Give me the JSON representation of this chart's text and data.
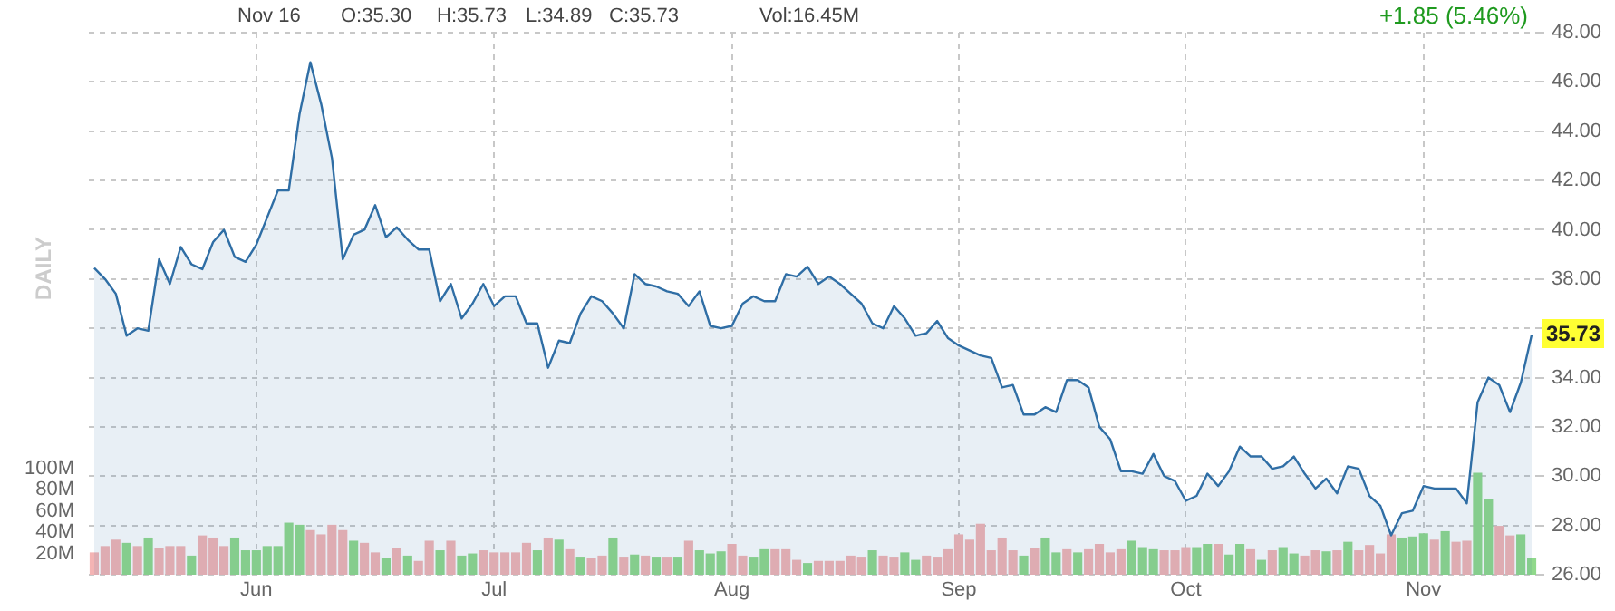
{
  "chart_data": {
    "type": "area",
    "categories": [
      null,
      null,
      null,
      null,
      null,
      null,
      null,
      null,
      null,
      null,
      null,
      null,
      null,
      null,
      null,
      "Jun",
      null,
      null,
      null,
      null,
      null,
      null,
      null,
      null,
      null,
      null,
      null,
      null,
      null,
      null,
      null,
      null,
      null,
      null,
      null,
      null,
      null,
      "Jul",
      null,
      null,
      null,
      null,
      null,
      null,
      null,
      null,
      null,
      null,
      null,
      null,
      null,
      null,
      null,
      null,
      null,
      null,
      null,
      null,
      null,
      "Aug",
      null,
      null,
      null,
      null,
      null,
      null,
      null,
      null,
      null,
      null,
      null,
      null,
      null,
      null,
      null,
      null,
      null,
      null,
      null,
      null,
      "Sep",
      null,
      null,
      null,
      null,
      null,
      null,
      null,
      null,
      null,
      null,
      null,
      null,
      null,
      null,
      null,
      null,
      null,
      null,
      null,
      null,
      "Oct",
      null,
      null,
      null,
      null,
      null,
      null,
      null,
      null,
      null,
      null,
      null,
      null,
      null,
      null,
      null,
      null,
      null,
      null,
      null,
      null,
      null,
      "Nov",
      null,
      null,
      null,
      null,
      null,
      null,
      null,
      null,
      null,
      null
    ],
    "series": [
      {
        "axis": "y2",
        "color": "#2f6ea5",
        "values": [
          38.45,
          38.0,
          37.4,
          35.7,
          36.0,
          35.9,
          38.8,
          37.8,
          39.3,
          38.6,
          38.4,
          39.5,
          40.0,
          38.9,
          38.7,
          39.4,
          40.5,
          41.6,
          41.6,
          44.7,
          46.8,
          45.1,
          42.9,
          38.8,
          39.8,
          40.0,
          41.0,
          39.7,
          40.1,
          39.6,
          39.2,
          39.2,
          37.1,
          37.8,
          36.4,
          37.0,
          37.8,
          36.9,
          37.3,
          37.3,
          36.2,
          36.2,
          34.4,
          35.5,
          35.4,
          36.6,
          37.3,
          37.1,
          36.6,
          36.0,
          38.2,
          37.8,
          37.7,
          37.5,
          37.4,
          36.9,
          37.5,
          36.1,
          36.0,
          36.1,
          37.0,
          37.3,
          37.1,
          37.1,
          38.2,
          38.1,
          38.5,
          37.8,
          38.1,
          37.8,
          37.4,
          37.0,
          36.2,
          36.0,
          36.9,
          36.4,
          35.7,
          35.8,
          36.3,
          35.6,
          35.3,
          35.1,
          34.9,
          34.8,
          33.6,
          33.7,
          32.5,
          32.5,
          32.8,
          32.6,
          33.9,
          33.9,
          33.6,
          32.0,
          31.5,
          30.2,
          30.2,
          30.1,
          30.9,
          30.0,
          29.8,
          29.0,
          29.2,
          30.1,
          29.6,
          30.2,
          31.2,
          30.8,
          30.8,
          30.3,
          30.4,
          30.8,
          30.1,
          29.5,
          29.9,
          29.3,
          30.4,
          30.3,
          29.2,
          28.8,
          27.6,
          28.5,
          28.6,
          29.6,
          29.5,
          29.5,
          29.5,
          28.9,
          33.0,
          34.0,
          33.7,
          32.6,
          33.8,
          35.73
        ]
      },
      {
        "type": "bar",
        "axis": "y",
        "values": [
          21,
          27,
          33,
          30,
          27,
          35,
          25,
          27,
          27,
          18,
          37,
          35,
          27,
          35,
          23,
          23,
          27,
          27,
          49,
          47,
          42,
          38,
          47,
          42,
          32,
          30,
          21,
          16,
          25,
          18,
          13,
          32,
          23,
          32,
          18,
          20,
          23,
          21,
          21,
          21,
          30,
          23,
          35,
          33,
          24,
          17,
          16,
          18,
          35,
          17,
          19,
          18,
          17,
          17,
          17,
          32,
          23,
          20,
          22,
          29,
          18,
          17,
          24,
          24,
          24,
          14,
          11,
          13,
          13,
          13,
          18,
          17,
          23,
          18,
          17,
          21,
          14,
          18,
          17,
          24,
          38,
          33,
          48,
          23,
          35,
          23,
          18,
          25,
          35,
          21,
          24,
          21,
          24,
          29,
          21,
          24,
          32,
          26,
          24,
          23,
          23,
          26,
          26,
          29,
          29,
          19,
          29,
          24,
          14,
          23,
          26,
          20,
          18,
          23,
          22,
          23,
          31,
          23,
          28,
          20,
          38,
          35,
          36,
          39,
          33,
          41,
          31,
          32,
          96,
          71,
          46,
          37,
          38,
          16
        ],
        "colors": [
          "#f4b4b4",
          "#f4b4b4",
          "#f4b4b4",
          "#90d98b",
          "#f4b4b4",
          "#90d98b",
          "#f4b4b4",
          "#f4b4b4",
          "#f4b4b4",
          "#90d98b",
          "#f4b4b4",
          "#f4b4b4",
          "#f4b4b4",
          "#90d98b",
          "#90d98b",
          "#90d98b",
          "#90d98b",
          "#90d98b",
          "#90d98b",
          "#90d98b",
          "#f4b4b4",
          "#f4b4b4",
          "#f4b4b4",
          "#f4b4b4",
          "#90d98b",
          "#f4b4b4",
          "#f4b4b4",
          "#90d98b",
          "#f4b4b4",
          "#90d98b",
          "#f4b4b4",
          "#f4b4b4",
          "#90d98b",
          "#f4b4b4",
          "#90d98b",
          "#90d98b",
          "#f4b4b4",
          "#f4b4b4",
          "#f4b4b4",
          "#f4b4b4",
          "#f4b4b4",
          "#90d98b",
          "#f4b4b4",
          "#90d98b",
          "#f4b4b4",
          "#90d98b",
          "#f4b4b4",
          "#f4b4b4",
          "#90d98b",
          "#f4b4b4",
          "#90d98b",
          "#f4b4b4",
          "#90d98b",
          "#f4b4b4",
          "#90d98b",
          "#f4b4b4",
          "#90d98b",
          "#90d98b",
          "#90d98b",
          "#f4b4b4",
          "#f4b4b4",
          "#90d98b",
          "#90d98b",
          "#f4b4b4",
          "#f4b4b4",
          "#f4b4b4",
          "#90d98b",
          "#f4b4b4",
          "#f4b4b4",
          "#f4b4b4",
          "#f4b4b4",
          "#f4b4b4",
          "#90d98b",
          "#f4b4b4",
          "#f4b4b4",
          "#90d98b",
          "#90d98b",
          "#f4b4b4",
          "#f4b4b4",
          "#f4b4b4",
          "#f4b4b4",
          "#f4b4b4",
          "#f4b4b4",
          "#f4b4b4",
          "#f4b4b4",
          "#f4b4b4",
          "#90d98b",
          "#f4b4b4",
          "#90d98b",
          "#90d98b",
          "#f4b4b4",
          "#90d98b",
          "#f4b4b4",
          "#f4b4b4",
          "#f4b4b4",
          "#f4b4b4",
          "#90d98b",
          "#90d98b",
          "#90d98b",
          "#f4b4b4",
          "#f4b4b4",
          "#f4b4b4",
          "#90d98b",
          "#90d98b",
          "#f4b4b4",
          "#90d98b",
          "#90d98b",
          "#f4b4b4",
          "#90d98b",
          "#f4b4b4",
          "#90d98b",
          "#90d98b",
          "#f4b4b4",
          "#f4b4b4",
          "#90d98b",
          "#f4b4b4",
          "#90d98b",
          "#f4b4b4",
          "#f4b4b4",
          "#f4b4b4",
          "#f4b4b4",
          "#90d98b",
          "#90d98b",
          "#90d98b",
          "#f4b4b4",
          "#90d98b",
          "#f4b4b4",
          "#f4b4b4",
          "#90d98b",
          "#90d98b",
          "#f4b4b4",
          "#f4b4b4",
          "#90d98b",
          "#90d98b"
        ]
      }
    ],
    "ylim": [
      0,
      510
    ],
    "yticks": [
      {
        "value": 20,
        "label": "20M"
      },
      {
        "value": 40,
        "label": "40M"
      },
      {
        "value": 60,
        "label": "60M"
      },
      {
        "value": 80,
        "label": "80M"
      },
      {
        "value": 100,
        "label": "100M"
      }
    ],
    "y2lim": [
      26,
      48
    ],
    "y2ticks": [
      {
        "value": 26,
        "label": "26.00"
      },
      {
        "value": 28,
        "label": "28.00"
      },
      {
        "value": 30,
        "label": "30.00"
      },
      {
        "value": 32,
        "label": "32.00"
      },
      {
        "value": 34,
        "label": "34.00"
      },
      {
        "value": 36,
        "label": null
      },
      {
        "value": 38,
        "label": "38.00"
      },
      {
        "value": 40,
        "label": "40.00"
      },
      {
        "value": 42,
        "label": "42.00"
      },
      {
        "value": 44,
        "label": "44.00"
      },
      {
        "value": 46,
        "label": "46.00"
      },
      {
        "value": 48,
        "label": "48.00"
      }
    ],
    "grid": true,
    "marker": "none",
    "legend": false,
    "annotations": [
      "Nov 16",
      "O:35.30",
      "H:35.73",
      "L:34.89",
      "C:35.73",
      "Vol:16.45M",
      "+1.85 (5.46%)",
      "DAILY",
      "35.73"
    ]
  }
}
